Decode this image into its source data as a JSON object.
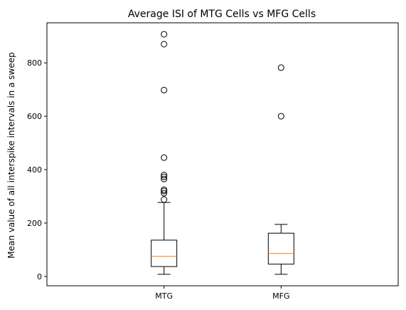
{
  "chart_data": {
    "type": "box",
    "title": "Average ISI of MTG Cells vs MFG Cells",
    "xlabel": "",
    "ylabel": "Mean value of all interspike intervals in a sweep",
    "categories": [
      "MTG",
      "MFG"
    ],
    "ylim": [
      -35,
      950
    ],
    "yticks": [
      0,
      200,
      400,
      600,
      800
    ],
    "grid": false,
    "boxes": [
      {
        "name": "MTG",
        "whisker_low": 8,
        "q1": 37,
        "median": 75,
        "q3": 136,
        "whisker_high": 277,
        "outliers": [
          288,
          312,
          320,
          325,
          365,
          373,
          380,
          445,
          698,
          870,
          907
        ]
      },
      {
        "name": "MFG",
        "whisker_low": 8,
        "q1": 46,
        "median": 86,
        "q3": 162,
        "whisker_high": 195,
        "outliers": [
          600,
          782
        ]
      }
    ],
    "colors": {
      "box": "#000000",
      "median": "#ff7f0e",
      "outlier": "#000000"
    }
  }
}
